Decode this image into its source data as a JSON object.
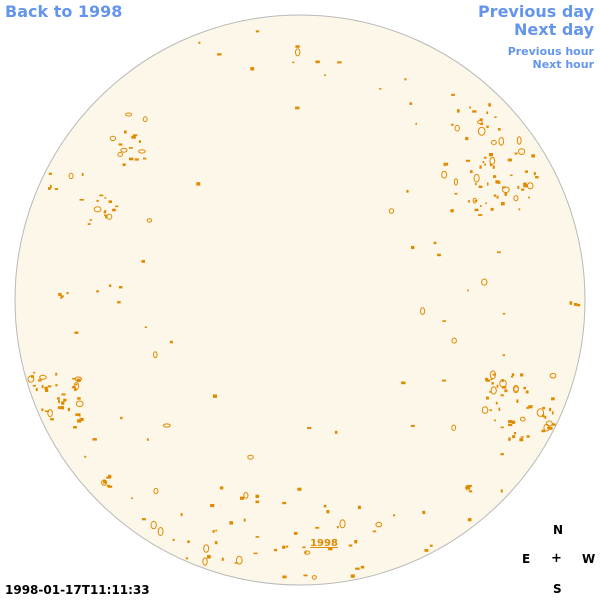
{
  "nav": {
    "back_label": "Back to 1998",
    "prev_day_label": "Previous day",
    "next_day_label": "Next day",
    "prev_hour_label": "Previous hour",
    "next_hour_label": "Next hour"
  },
  "disk": {
    "fill_color": "#fdf7e9",
    "border_color": "#b9b9b9",
    "contour_color": "#e08a00",
    "year_label": "1998"
  },
  "timestamp": "1998-01-17T11:11:33",
  "compass": {
    "north": "N",
    "east": "E",
    "center": "+",
    "west": "W",
    "south": "S"
  }
}
